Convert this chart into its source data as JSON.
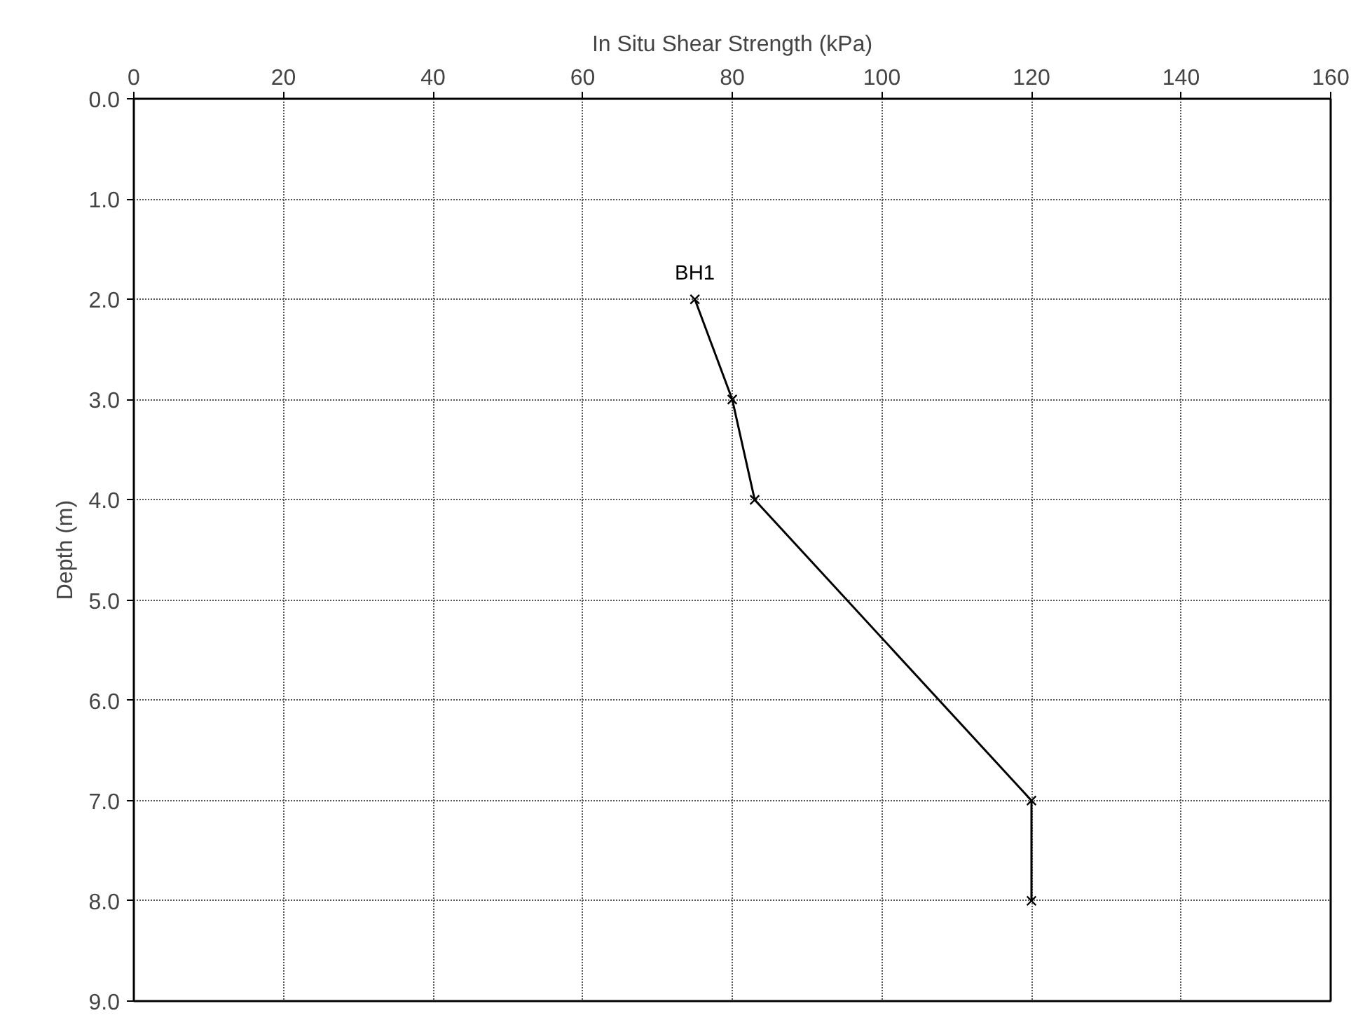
{
  "chart_data": {
    "type": "line",
    "xlabel": "In Situ Shear Strength (kPa)",
    "ylabel": "Depth (m)",
    "series": [
      {
        "name": "BH1",
        "color": "#000000",
        "x": [
          75,
          80,
          83,
          120,
          120
        ],
        "values": [
          2,
          3,
          4,
          7,
          8
        ]
      }
    ],
    "xlim": [
      0,
      160
    ],
    "xticks": [
      0,
      20,
      40,
      60,
      80,
      100,
      120,
      140,
      160
    ],
    "ylim": [
      9,
      0
    ],
    "yticks": [
      {
        "value": 0,
        "label": "0.0"
      },
      {
        "value": 1,
        "label": "1.0"
      },
      {
        "value": 2,
        "label": "2.0"
      },
      {
        "value": 3,
        "label": "3.0"
      },
      {
        "value": 4,
        "label": "4.0"
      },
      {
        "value": 5,
        "label": "5.0"
      },
      {
        "value": 6,
        "label": "6.0"
      },
      {
        "value": 7,
        "label": "7.0"
      },
      {
        "value": 8,
        "label": "8.0"
      },
      {
        "value": 9,
        "label": "9.0"
      }
    ],
    "grid": true,
    "marker": "cross",
    "line_style": "solid"
  }
}
